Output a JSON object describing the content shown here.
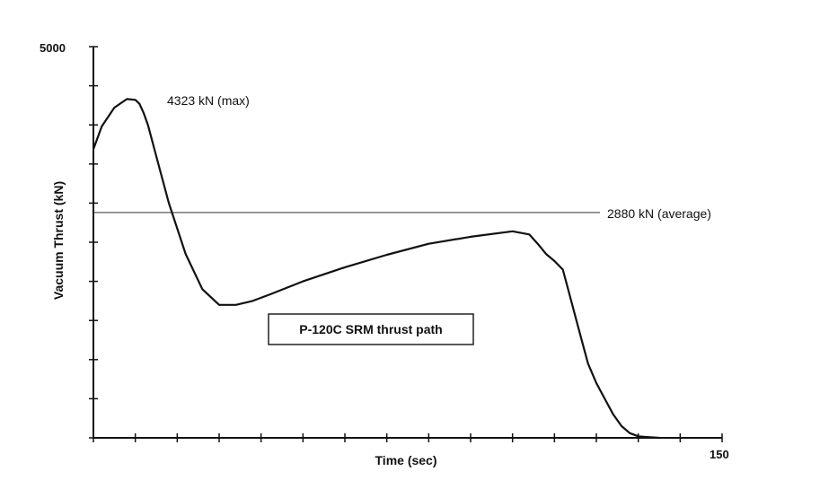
{
  "chart_data": {
    "type": "line",
    "title": "",
    "xlabel": "Time (sec)",
    "ylabel": "Vacuum Thrust (kN)",
    "xlim": [
      0,
      150
    ],
    "ylim": [
      0,
      5000
    ],
    "x_tick_labels": [
      "150"
    ],
    "y_tick_labels": [
      "5000"
    ],
    "x_ticks": [
      0,
      10,
      20,
      30,
      40,
      50,
      60,
      70,
      80,
      90,
      100,
      110,
      120,
      130,
      140,
      150
    ],
    "y_ticks": [
      0,
      500,
      1000,
      1500,
      2000,
      2500,
      3000,
      3500,
      4000,
      4500,
      5000
    ],
    "grid": false,
    "legend": "none",
    "series": [
      {
        "x": [
          0,
          2,
          5,
          8,
          10,
          11,
          12,
          13,
          15,
          18,
          22,
          26,
          30,
          34,
          38,
          42,
          50,
          60,
          70,
          80,
          90,
          100,
          104,
          106,
          108,
          110,
          112,
          114,
          116,
          118,
          120,
          122,
          124,
          126,
          128,
          130,
          132,
          135
        ],
        "y": [
          3690,
          3980,
          4220,
          4330,
          4320,
          4270,
          4150,
          4000,
          3600,
          3000,
          2350,
          1900,
          1700,
          1700,
          1750,
          1830,
          2000,
          2180,
          2340,
          2480,
          2570,
          2640,
          2600,
          2480,
          2350,
          2260,
          2150,
          1750,
          1350,
          950,
          700,
          500,
          300,
          150,
          60,
          20,
          10,
          0
        ],
        "color": "#111111"
      }
    ],
    "average": {
      "value": 2880,
      "label": "2880 kN (average)"
    },
    "max_annotation": {
      "label": "4323 kN (max)",
      "x": 10,
      "y": 4323
    },
    "boxed_label": "P-120C SRM thrust path"
  }
}
